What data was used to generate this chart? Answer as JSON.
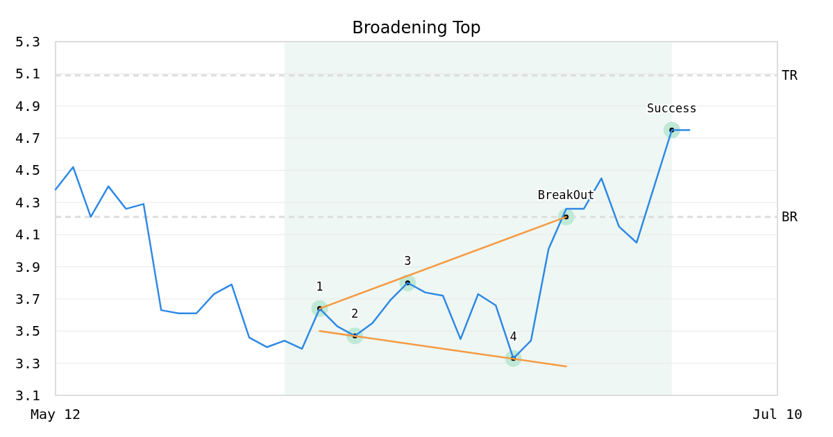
{
  "chart_data": {
    "type": "line",
    "title": "Broadening Top",
    "categories": [
      "May 12",
      null,
      null,
      null,
      null,
      null,
      null,
      null,
      null,
      null,
      null,
      null,
      null,
      null,
      null,
      null,
      null,
      null,
      null,
      null,
      null,
      null,
      null,
      null,
      null,
      null,
      null,
      null,
      null,
      null,
      null,
      null,
      null,
      null,
      null,
      null,
      null,
      null,
      null,
      null,
      null,
      "Jul 10"
    ],
    "ylim": [
      3.1,
      5.3
    ],
    "yticks": [
      3.1,
      3.3,
      3.5,
      3.7,
      3.9,
      4.1,
      4.3,
      4.5,
      4.7,
      4.9,
      5.1,
      5.3
    ],
    "grid": "y",
    "line_style": "solid",
    "series": [
      {
        "color": "#2e88e6",
        "values": [
          4.38,
          4.52,
          4.21,
          4.4,
          4.26,
          4.29,
          3.63,
          3.61,
          3.61,
          3.73,
          3.79,
          3.46,
          3.4,
          3.44,
          3.39,
          3.64,
          3.53,
          3.47,
          3.55,
          3.69,
          3.8,
          3.74,
          3.72,
          3.45,
          3.73,
          3.66,
          3.33,
          3.44,
          4.01,
          4.26,
          4.26,
          4.45,
          4.15,
          4.05,
          4.4,
          4.75,
          4.75,
          null,
          null,
          null,
          null,
          null
        ]
      },
      {
        "color": "#f59a42",
        "values": [
          null,
          null,
          null,
          null,
          null,
          null,
          null,
          null,
          null,
          null,
          null,
          null,
          null,
          null,
          null,
          3.64,
          null,
          null,
          null,
          null,
          null,
          null,
          null,
          null,
          null,
          null,
          null,
          null,
          null,
          4.21,
          null,
          null,
          null,
          null,
          null,
          null,
          null,
          null,
          null,
          null,
          null,
          null
        ]
      },
      {
        "color": "#f59a42",
        "values": [
          null,
          null,
          null,
          null,
          null,
          null,
          null,
          null,
          null,
          null,
          null,
          null,
          null,
          null,
          null,
          3.5,
          null,
          null,
          null,
          null,
          null,
          null,
          null,
          null,
          null,
          null,
          null,
          null,
          null,
          3.28,
          null,
          null,
          null,
          null,
          null,
          null,
          null,
          null,
          null,
          null,
          null,
          null
        ]
      },
      {
        "type": "scatter",
        "marker": "circle",
        "name": "1",
        "color": "#bfe9d6",
        "values": [
          null,
          null,
          null,
          null,
          null,
          null,
          null,
          null,
          null,
          null,
          null,
          null,
          null,
          null,
          null,
          3.64,
          null,
          null,
          null,
          null,
          null,
          null,
          null,
          null,
          null,
          null,
          null,
          null,
          null,
          null,
          null,
          null,
          null,
          null,
          null,
          null,
          null,
          null,
          null,
          null,
          null,
          null
        ]
      },
      {
        "type": "scatter",
        "marker": "circle",
        "name": "2",
        "color": "#bfe9d6",
        "values": [
          null,
          null,
          null,
          null,
          null,
          null,
          null,
          null,
          null,
          null,
          null,
          null,
          null,
          null,
          null,
          null,
          null,
          3.47,
          null,
          null,
          null,
          null,
          null,
          null,
          null,
          null,
          null,
          null,
          null,
          null,
          null,
          null,
          null,
          null,
          null,
          null,
          null,
          null,
          null,
          null,
          null,
          null
        ]
      },
      {
        "type": "scatter",
        "marker": "circle",
        "name": "3",
        "color": "#bfe9d6",
        "values": [
          null,
          null,
          null,
          null,
          null,
          null,
          null,
          null,
          null,
          null,
          null,
          null,
          null,
          null,
          null,
          null,
          null,
          null,
          null,
          null,
          3.8,
          null,
          null,
          null,
          null,
          null,
          null,
          null,
          null,
          null,
          null,
          null,
          null,
          null,
          null,
          null,
          null,
          null,
          null,
          null,
          null,
          null
        ]
      },
      {
        "type": "scatter",
        "marker": "circle",
        "name": "4",
        "color": "#bfe9d6",
        "values": [
          null,
          null,
          null,
          null,
          null,
          null,
          null,
          null,
          null,
          null,
          null,
          null,
          null,
          null,
          null,
          null,
          null,
          null,
          null,
          null,
          null,
          null,
          null,
          null,
          null,
          null,
          3.33,
          null,
          null,
          null,
          null,
          null,
          null,
          null,
          null,
          null,
          null,
          null,
          null,
          null,
          null,
          null
        ]
      },
      {
        "type": "scatter",
        "marker": "circle",
        "name": "BreakOut",
        "color": "#bfe9d6",
        "values": [
          null,
          null,
          null,
          null,
          null,
          null,
          null,
          null,
          null,
          null,
          null,
          null,
          null,
          null,
          null,
          null,
          null,
          null,
          null,
          null,
          null,
          null,
          null,
          null,
          null,
          null,
          null,
          null,
          null,
          4.21,
          null,
          null,
          null,
          null,
          null,
          null,
          null,
          null,
          null,
          null,
          null,
          null
        ]
      },
      {
        "type": "scatter",
        "marker": "circle",
        "name": "Success",
        "color": "#bfe9d6",
        "values": [
          null,
          null,
          null,
          null,
          null,
          null,
          null,
          null,
          null,
          null,
          null,
          null,
          null,
          null,
          null,
          null,
          null,
          null,
          null,
          null,
          null,
          null,
          null,
          null,
          null,
          null,
          null,
          null,
          null,
          null,
          null,
          null,
          null,
          null,
          null,
          4.75,
          null,
          null,
          null,
          null,
          null,
          null
        ]
      }
    ],
    "ref_lines": [
      {
        "axis": "y",
        "value": 5.09,
        "label": "TR",
        "color": "#dddddd",
        "line_style": "dashed"
      },
      {
        "axis": "y",
        "value": 4.21,
        "label": "BR",
        "color": "#dddddd",
        "line_style": "dashed"
      }
    ]
  }
}
